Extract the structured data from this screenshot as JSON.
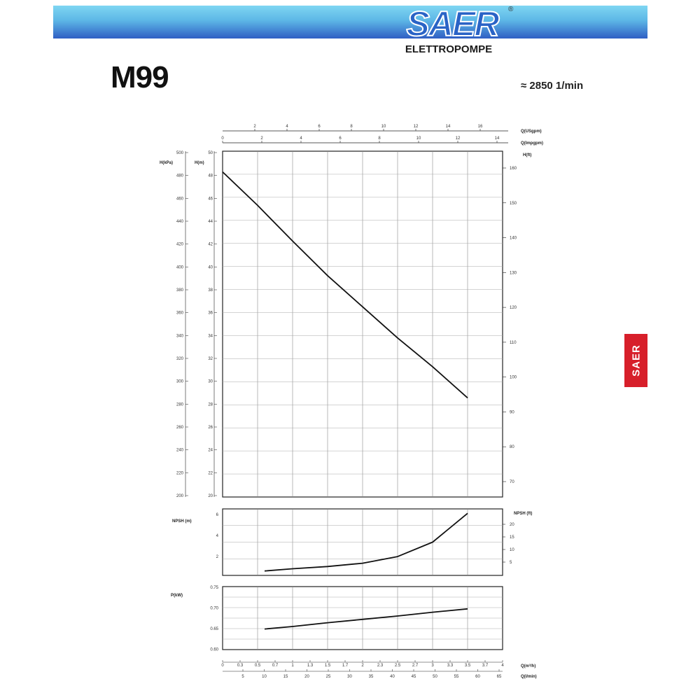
{
  "header": {
    "brand": "SAER",
    "registered_mark": "®",
    "brand_sub": "ELETTROPOMPE",
    "model": "M99",
    "speed": "≈ 2850 1/min",
    "side_badge": "SAER",
    "colors": {
      "band_top": "#7fd6f2",
      "band_bottom": "#2f5ec4",
      "badge": "#d71f2a"
    }
  },
  "chart_data": [
    {
      "id": "head",
      "type": "line",
      "top_axes": [
        {
          "ticks": [
            "2",
            "4",
            "6",
            "8",
            "10",
            "12",
            "14",
            "16"
          ]
        },
        {
          "ticks": [
            "0",
            "2",
            "4",
            "6",
            "8",
            "10",
            "12",
            "14"
          ]
        }
      ],
      "top_axis_labels": [
        "Q(USgpm)",
        "Q(Impgpm)"
      ],
      "left_outer_label": "H(kPa)",
      "left_outer_ticks": [
        "500",
        "480",
        "460",
        "440",
        "420",
        "400",
        "380",
        "360",
        "340",
        "320",
        "300",
        "280",
        "260",
        "240",
        "220",
        "200"
      ],
      "left_inner_label": "H(m)",
      "left_inner_ticks": [
        "50",
        "48",
        "46",
        "44",
        "42",
        "40",
        "38",
        "36",
        "34",
        "32",
        "30",
        "28",
        "26",
        "24",
        "22",
        "20"
      ],
      "ylim": [
        20,
        50
      ],
      "right_label": "H(ft)",
      "right_ticks": [
        "160",
        "150",
        "140",
        "130",
        "120",
        "110",
        "100",
        "90",
        "80",
        "70"
      ],
      "series": [
        {
          "x": [
            0,
            0.5,
            1,
            1.5,
            2,
            2.5,
            3,
            3.5
          ],
          "y": [
            48.2,
            45.3,
            42.2,
            39.2,
            36.5,
            33.8,
            31.3,
            28.6
          ]
        }
      ]
    },
    {
      "id": "npsh",
      "type": "line",
      "left_label": "NPSH (m)",
      "left_ticks": [
        "6",
        "4",
        "2"
      ],
      "ylim": [
        0,
        6
      ],
      "right_label": "NPSH (ft)",
      "right_ticks": [
        "20",
        "15",
        "10",
        "5"
      ],
      "series": [
        {
          "x": [
            0.6,
            1,
            1.5,
            2,
            2.5,
            3,
            3.5
          ],
          "y": [
            0.4,
            0.6,
            0.8,
            1.1,
            1.7,
            3.0,
            5.6
          ]
        }
      ]
    },
    {
      "id": "power",
      "type": "line",
      "left_label": "P(kW)",
      "left_ticks": [
        "0.75",
        "0.70",
        "0.65",
        "0.60"
      ],
      "ylim": [
        0.6,
        0.75
      ],
      "series": [
        {
          "x": [
            0.6,
            1,
            1.5,
            2,
            2.5,
            3,
            3.5
          ],
          "y": [
            0.649,
            0.655,
            0.664,
            0.672,
            0.68,
            0.689,
            0.697
          ]
        }
      ]
    }
  ],
  "bottom_axes": {
    "q_m3h": {
      "label": "Q(m³/h)",
      "ticks": [
        "0",
        "0.3",
        "0.5",
        "0.7",
        "1",
        "1.3",
        "1.5",
        "1.7",
        "2",
        "2.3",
        "2.5",
        "2.7",
        "3",
        "3.3",
        "3.5",
        "3.7",
        "4"
      ]
    },
    "q_lmin": {
      "label": "Q(l/min)",
      "ticks": [
        "5",
        "10",
        "15",
        "20",
        "25",
        "30",
        "35",
        "40",
        "45",
        "50",
        "55",
        "60",
        "65"
      ]
    },
    "xlim": [
      0,
      4
    ]
  }
}
